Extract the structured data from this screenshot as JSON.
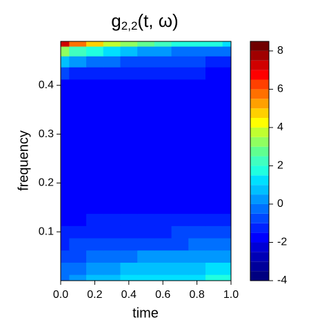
{
  "chart_data": {
    "type": "filled-contour",
    "title": {
      "base": "g",
      "subscript": "2,2",
      "rest": "(t, ω)"
    },
    "x_label": "time",
    "y_label": "frequency",
    "x": [
      0,
      0.1,
      0.2,
      0.3,
      0.4,
      0.5,
      0.6,
      0.7,
      0.8,
      0.9,
      1.0
    ],
    "y": [
      0,
      0.025,
      0.05,
      0.075,
      0.1,
      0.125,
      0.15,
      0.2,
      0.25,
      0.3,
      0.35,
      0.4,
      0.425,
      0.45,
      0.47,
      0.49
    ],
    "z": [
      [
        -0.2,
        0.3,
        0.6,
        0.8,
        1.0,
        1.1,
        1.2,
        1.3,
        1.4,
        1.5,
        1.6
      ],
      [
        -0.5,
        -0.1,
        0.2,
        0.4,
        0.5,
        0.6,
        0.7,
        0.8,
        0.9,
        1.0,
        1.0
      ],
      [
        -0.9,
        -0.6,
        -0.4,
        -0.2,
        -0.1,
        0.0,
        0.1,
        0.1,
        0.2,
        0.2,
        0.3
      ],
      [
        -1.2,
        -1.0,
        -0.9,
        -0.8,
        -0.7,
        -0.7,
        -0.6,
        -0.6,
        -0.5,
        -0.5,
        -0.5
      ],
      [
        -1.4,
        -1.3,
        -1.2,
        -1.2,
        -1.1,
        -1.1,
        -1.1,
        -1.0,
        -1.0,
        -1.0,
        -1.0
      ],
      [
        -1.6,
        -1.6,
        -1.5,
        -1.5,
        -1.5,
        -1.5,
        -1.4,
        -1.4,
        -1.4,
        -1.4,
        -1.4
      ],
      [
        -1.9,
        -1.9,
        -1.9,
        -1.9,
        -1.9,
        -1.9,
        -1.9,
        -1.9,
        -1.9,
        -1.9,
        -1.9
      ],
      [
        -1.9,
        -1.9,
        -1.9,
        -1.9,
        -1.9,
        -1.9,
        -1.9,
        -1.9,
        -1.9,
        -1.9,
        -1.9
      ],
      [
        -1.9,
        -1.9,
        -1.9,
        -1.9,
        -1.9,
        -1.9,
        -1.9,
        -1.9,
        -1.9,
        -1.9,
        -1.9
      ],
      [
        -1.9,
        -1.9,
        -1.9,
        -1.9,
        -1.9,
        -1.9,
        -1.9,
        -1.9,
        -1.9,
        -1.9,
        -1.9
      ],
      [
        -1.9,
        -1.9,
        -1.9,
        -1.9,
        -1.9,
        -1.9,
        -1.9,
        -1.9,
        -1.9,
        -1.9,
        -1.9
      ],
      [
        -1.6,
        -1.7,
        -1.7,
        -1.8,
        -1.8,
        -1.8,
        -1.9,
        -1.9,
        -1.9,
        -1.9,
        -1.9
      ],
      [
        -0.9,
        -1.1,
        -1.2,
        -1.3,
        -1.4,
        -1.4,
        -1.5,
        -1.5,
        -1.5,
        -1.6,
        -1.6
      ],
      [
        0.5,
        0.0,
        -0.3,
        -0.5,
        -0.7,
        -0.8,
        -0.9,
        -1.0,
        -1.0,
        -1.1,
        -1.1
      ],
      [
        3.0,
        2.2,
        1.5,
        1.0,
        0.6,
        0.3,
        0.1,
        -0.1,
        -0.2,
        -0.3,
        -0.4
      ],
      [
        7.0,
        5.5,
        4.5,
        3.6,
        3.0,
        2.5,
        2.2,
        1.9,
        1.7,
        1.5,
        1.3
      ]
    ],
    "xlim": [
      0,
      1
    ],
    "ylim": [
      0,
      0.49
    ],
    "xticks": [
      {
        "value": 0,
        "label": "0.0"
      },
      {
        "value": 0.2,
        "label": "0.2"
      },
      {
        "value": 0.4,
        "label": "0.4"
      },
      {
        "value": 0.6,
        "label": "0.6"
      },
      {
        "value": 0.8,
        "label": "0.8"
      },
      {
        "value": 1,
        "label": "1.0"
      }
    ],
    "yticks": [
      0.1,
      0.2,
      0.3,
      0.4
    ],
    "levels": [
      -4,
      -3.5,
      -3,
      -2.5,
      -2,
      -1.5,
      -1,
      -0.5,
      0,
      0.5,
      1,
      1.5,
      2,
      2.5,
      3,
      3.5,
      4,
      4.5,
      5,
      5.5,
      6,
      6.5,
      7,
      7.5,
      8,
      8.5
    ],
    "colors": [
      "#000080",
      "#00009A",
      "#0000B5",
      "#0000D5",
      "#0000FF",
      "#0022FF",
      "#0048FF",
      "#0070FF",
      "#0098FF",
      "#00C0FF",
      "#00E0FF",
      "#20FFE0",
      "#40FFC0",
      "#60FF90",
      "#90FF60",
      "#C0FF30",
      "#FFFF00",
      "#FFD000",
      "#FFA000",
      "#FF7000",
      "#FF4000",
      "#FF0000",
      "#D00000",
      "#A00000",
      "#700000"
    ],
    "colorbar_ticks": [
      -4,
      -2,
      0,
      2,
      4,
      6,
      8
    ]
  }
}
